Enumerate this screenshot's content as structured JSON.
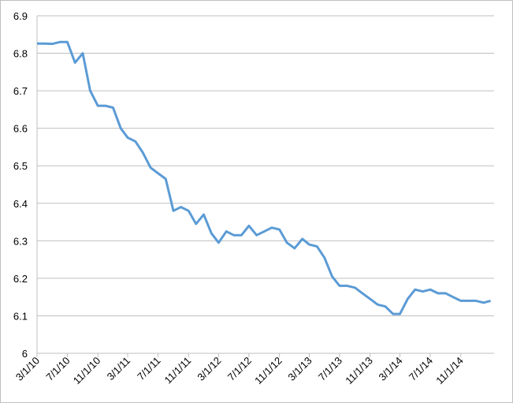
{
  "chart_data": {
    "type": "line",
    "x": [
      "3/1/10",
      "4/1/10",
      "5/1/10",
      "6/1/10",
      "7/1/10",
      "8/1/10",
      "9/1/10",
      "10/1/10",
      "11/1/10",
      "12/1/10",
      "1/1/11",
      "2/1/11",
      "3/1/11",
      "4/1/11",
      "5/1/11",
      "6/1/11",
      "7/1/11",
      "8/1/11",
      "9/1/11",
      "10/1/11",
      "11/1/11",
      "12/1/11",
      "1/1/12",
      "2/1/12",
      "3/1/12",
      "4/1/12",
      "5/1/12",
      "6/1/12",
      "7/1/12",
      "8/1/12",
      "9/1/12",
      "10/1/12",
      "11/1/12",
      "12/1/12",
      "1/1/13",
      "2/1/13",
      "3/1/13",
      "4/1/13",
      "5/1/13",
      "6/1/13",
      "7/1/13",
      "8/1/13",
      "9/1/13",
      "10/1/13",
      "11/1/13",
      "12/1/13",
      "1/1/14",
      "2/1/14",
      "3/1/14",
      "4/1/14",
      "5/1/14",
      "6/1/14",
      "7/1/14",
      "8/1/14",
      "9/1/14",
      "10/1/14",
      "11/1/14",
      "12/1/14",
      "1/1/15",
      "2/1/15",
      "3/1/15"
    ],
    "series": [
      {
        "color": "#5b9bd5",
        "values": [
          6.826,
          6.826,
          6.825,
          6.83,
          6.83,
          6.775,
          6.8,
          6.7,
          6.66,
          6.66,
          6.655,
          6.6,
          6.575,
          6.565,
          6.535,
          6.495,
          6.48,
          6.465,
          6.38,
          6.39,
          6.38,
          6.345,
          6.37,
          6.32,
          6.295,
          6.325,
          6.315,
          6.315,
          6.34,
          6.315,
          6.325,
          6.335,
          6.33,
          6.295,
          6.28,
          6.305,
          6.29,
          6.285,
          6.255,
          6.205,
          6.18,
          6.18,
          6.175,
          6.16,
          6.145,
          6.13,
          6.125,
          6.105,
          6.105,
          6.145,
          6.17,
          6.165,
          6.17,
          6.16,
          6.16,
          6.15,
          6.14,
          6.14,
          6.14,
          6.135,
          6.14
        ]
      }
    ],
    "xlim": [
      "3/1/10",
      "3/15/15"
    ],
    "xticks": [
      "3/1/10",
      "7/1/10",
      "11/1/10",
      "3/1/11",
      "7/1/11",
      "11/1/11",
      "3/1/12",
      "7/1/12",
      "11/1/12",
      "3/1/13",
      "7/1/13",
      "11/1/13",
      "3/1/14",
      "7/1/14",
      "11/1/14"
    ],
    "ylim": [
      6,
      6.9
    ],
    "yticks": [
      6,
      6.1,
      6.2,
      6.3,
      6.4,
      6.5,
      6.6,
      6.7,
      6.8,
      6.9
    ],
    "grid": true
  }
}
